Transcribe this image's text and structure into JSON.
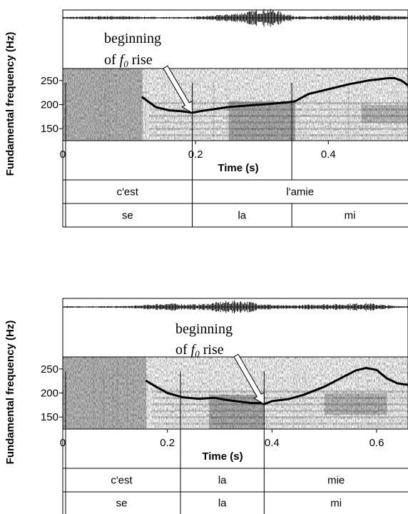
{
  "chart_data": [
    {
      "type": "line",
      "ylabel": "Fundamental frequency (Hz)",
      "xlabel": "Time (s)",
      "xlim": [
        0,
        0.52
      ],
      "ylim": [
        125,
        275
      ],
      "x_ticks": [
        {
          "value": 0,
          "label": "0"
        },
        {
          "value": 0.2,
          "label": "0.2"
        },
        {
          "value": 0.4,
          "label": "0.4"
        }
      ],
      "y_ticks": [
        {
          "value": 150,
          "label": "150"
        },
        {
          "value": 200,
          "label": "200"
        },
        {
          "value": 250,
          "label": "250"
        }
      ],
      "annotation": {
        "line1": "beginning",
        "line2_pre": "of ",
        "line2_f": "f",
        "line2_sub": "0",
        "line2_post": " rise",
        "target": {
          "x": 0.195,
          "y": 183
        }
      },
      "f0_points": [
        [
          0.12,
          215
        ],
        [
          0.14,
          195
        ],
        [
          0.16,
          188
        ],
        [
          0.18,
          186
        ],
        [
          0.195,
          183
        ],
        [
          0.21,
          187
        ],
        [
          0.23,
          191
        ],
        [
          0.25,
          195
        ],
        [
          0.28,
          198
        ],
        [
          0.31,
          201
        ],
        [
          0.34,
          205
        ],
        [
          0.35,
          207
        ],
        [
          0.37,
          222
        ],
        [
          0.4,
          232
        ],
        [
          0.43,
          242
        ],
        [
          0.46,
          250
        ],
        [
          0.49,
          255
        ],
        [
          0.5,
          255
        ],
        [
          0.51,
          250
        ],
        [
          0.52,
          240
        ]
      ],
      "tiers": [
        {
          "intervals": [
            {
              "start": 0.0,
              "end": 0.195,
              "label": "c'est"
            },
            {
              "start": 0.195,
              "end": 0.52,
              "label": "l'amie"
            }
          ]
        },
        {
          "intervals": [
            {
              "start": 0.0,
              "end": 0.195,
              "label": "se"
            },
            {
              "start": 0.195,
              "end": 0.345,
              "label": "la"
            },
            {
              "start": 0.345,
              "end": 0.52,
              "label": "mi"
            }
          ]
        }
      ],
      "boundaries": [
        0.195,
        0.345
      ]
    },
    {
      "type": "line",
      "ylabel": "Fundamental frequency (Hz)",
      "xlabel": "Time (s)",
      "xlim": [
        0,
        0.66
      ],
      "ylim": [
        125,
        275
      ],
      "x_ticks": [
        {
          "value": 0,
          "label": "0"
        },
        {
          "value": 0.2,
          "label": "0.2"
        },
        {
          "value": 0.4,
          "label": "0.4"
        },
        {
          "value": 0.6,
          "label": "0.6"
        }
      ],
      "y_ticks": [
        {
          "value": 150,
          "label": "150"
        },
        {
          "value": 200,
          "label": "200"
        },
        {
          "value": 250,
          "label": "250"
        }
      ],
      "annotation": {
        "line1": "beginning",
        "line2_pre": "of ",
        "line2_f": "f",
        "line2_sub": "0",
        "line2_post": " rise",
        "target": {
          "x": 0.385,
          "y": 177
        }
      },
      "f0_points": [
        [
          0.16,
          225
        ],
        [
          0.18,
          212
        ],
        [
          0.2,
          200
        ],
        [
          0.23,
          191
        ],
        [
          0.26,
          188
        ],
        [
          0.29,
          190
        ],
        [
          0.31,
          186
        ],
        [
          0.33,
          183
        ],
        [
          0.36,
          179
        ],
        [
          0.38,
          179
        ],
        [
          0.385,
          177
        ],
        [
          0.4,
          183
        ],
        [
          0.43,
          187
        ],
        [
          0.46,
          196
        ],
        [
          0.5,
          213
        ],
        [
          0.53,
          230
        ],
        [
          0.56,
          247
        ],
        [
          0.58,
          252
        ],
        [
          0.6,
          248
        ],
        [
          0.62,
          230
        ],
        [
          0.64,
          220
        ],
        [
          0.66,
          217
        ]
      ],
      "tiers": [
        {
          "intervals": [
            {
              "start": 0.0,
              "end": 0.225,
              "label": "c'est"
            },
            {
              "start": 0.225,
              "end": 0.385,
              "label": "la"
            },
            {
              "start": 0.385,
              "end": 0.66,
              "label": "mie"
            }
          ]
        },
        {
          "intervals": [
            {
              "start": 0.0,
              "end": 0.225,
              "label": "se"
            },
            {
              "start": 0.225,
              "end": 0.385,
              "label": "la"
            },
            {
              "start": 0.385,
              "end": 0.66,
              "label": "mi"
            }
          ]
        }
      ],
      "boundaries": [
        0.225,
        0.385
      ]
    }
  ]
}
